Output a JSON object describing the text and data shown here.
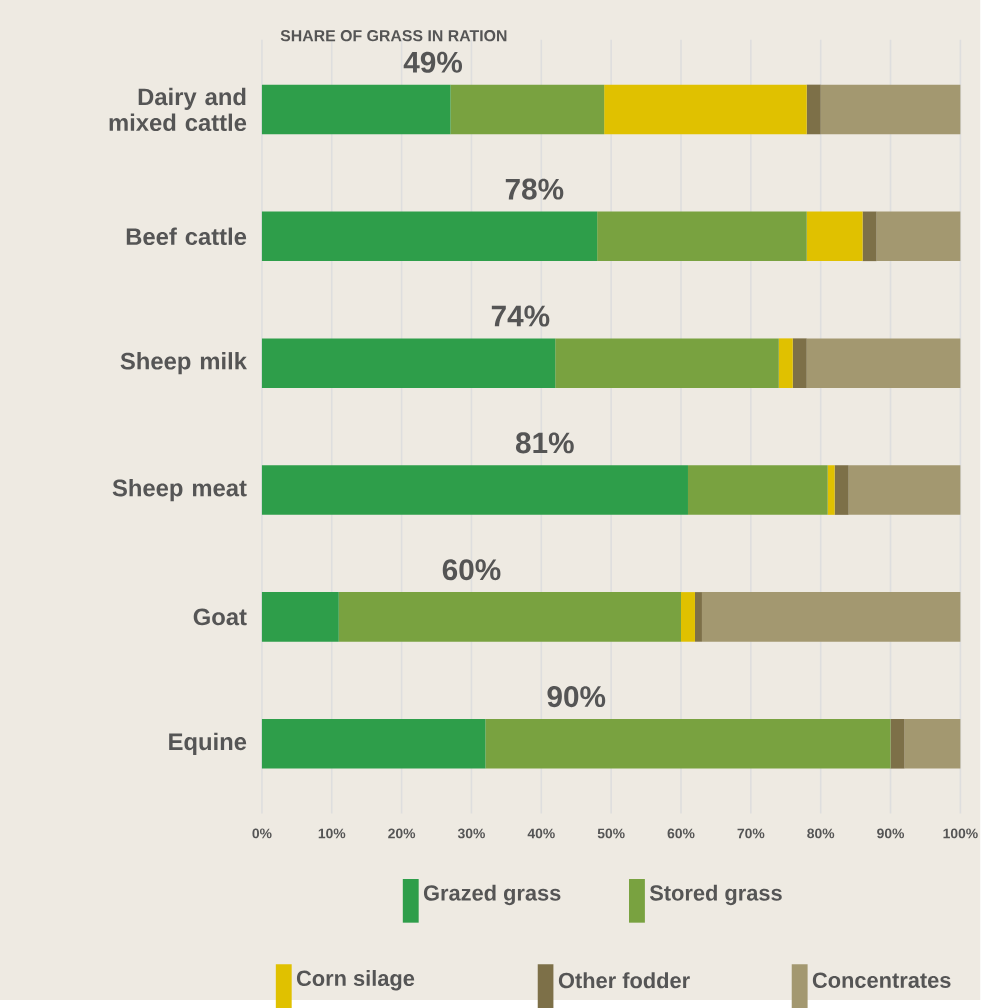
{
  "chart_data": {
    "type": "bar",
    "orientation": "horizontal",
    "stacked": true,
    "title": "SHARE OF GRASS IN RATION",
    "categories": [
      "Dairy and mixed cattle",
      "Beef cattle",
      "Sheep milk",
      "Sheep meat",
      "Goat",
      "Equine"
    ],
    "series": [
      {
        "name": "Grazed  grass",
        "color": "#2e9e4a",
        "values": [
          27,
          48,
          42,
          61,
          11,
          32
        ]
      },
      {
        "name": "Stored grass",
        "color": "#79a240",
        "values": [
          22,
          30,
          32,
          20,
          49,
          58
        ]
      },
      {
        "name": "Corn silage",
        "color": "#e0c100",
        "values": [
          29,
          8,
          2,
          1,
          2,
          0
        ]
      },
      {
        "name": "Other fodder",
        "color": "#7d7048",
        "values": [
          2,
          2,
          2,
          2,
          1,
          2
        ]
      },
      {
        "name": "Concentrates",
        "color": "#a39870",
        "values": [
          20,
          12,
          22,
          16,
          37,
          8
        ]
      }
    ],
    "xlim": [
      0,
      100
    ],
    "xticks": [
      {
        "value": 0,
        "label": "0%"
      },
      {
        "value": 10,
        "label": "10%"
      },
      {
        "value": 20,
        "label": "20%"
      },
      {
        "value": 30,
        "label": "30%"
      },
      {
        "value": 40,
        "label": "40%"
      },
      {
        "value": 50,
        "label": "50%"
      },
      {
        "value": 60,
        "label": "60%"
      },
      {
        "value": 70,
        "label": "70%"
      },
      {
        "value": 80,
        "label": "80%"
      },
      {
        "value": 90,
        "label": "90%"
      },
      {
        "value": 100,
        "label": "100%"
      }
    ],
    "annotations": [
      "49%",
      "78%",
      "74%",
      "81%",
      "60%",
      "90%"
    ],
    "grid": "x",
    "legend": "bottom"
  }
}
